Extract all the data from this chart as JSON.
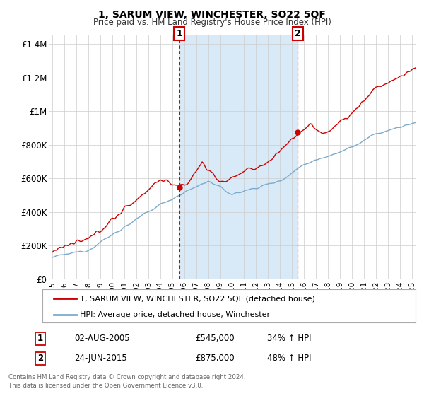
{
  "title": "1, SARUM VIEW, WINCHESTER, SO22 5QF",
  "subtitle": "Price paid vs. HM Land Registry's House Price Index (HPI)",
  "ylim": [
    0,
    1450000
  ],
  "xlim": [
    1994.7,
    2025.3
  ],
  "yticks": [
    0,
    200000,
    400000,
    600000,
    800000,
    1000000,
    1200000,
    1400000
  ],
  "ytick_labels": [
    "£0",
    "£200K",
    "£400K",
    "£600K",
    "£800K",
    "£1M",
    "£1.2M",
    "£1.4M"
  ],
  "xticks": [
    1995,
    1996,
    1997,
    1998,
    1999,
    2000,
    2001,
    2002,
    2003,
    2004,
    2005,
    2006,
    2007,
    2008,
    2009,
    2010,
    2011,
    2012,
    2013,
    2014,
    2015,
    2016,
    2017,
    2018,
    2019,
    2020,
    2021,
    2022,
    2023,
    2024,
    2025
  ],
  "sale1_x": 2005.583,
  "sale1_y": 545000,
  "sale1_label": "1",
  "sale1_date": "02-AUG-2005",
  "sale1_price": "£545,000",
  "sale1_hpi": "34% ↑ HPI",
  "sale2_x": 2015.479,
  "sale2_y": 875000,
  "sale2_label": "2",
  "sale2_date": "24-JUN-2015",
  "sale2_price": "£875,000",
  "sale2_hpi": "48% ↑ HPI",
  "line1_color": "#cc0000",
  "line2_color": "#7aaacc",
  "shade_color": "#d8eaf8",
  "marker_color": "#cc0000",
  "grid_color": "#cccccc",
  "bg_color": "#ffffff",
  "legend1": "1, SARUM VIEW, WINCHESTER, SO22 5QF (detached house)",
  "legend2": "HPI: Average price, detached house, Winchester",
  "footnote1": "Contains HM Land Registry data © Crown copyright and database right 2024.",
  "footnote2": "This data is licensed under the Open Government Licence v3.0."
}
